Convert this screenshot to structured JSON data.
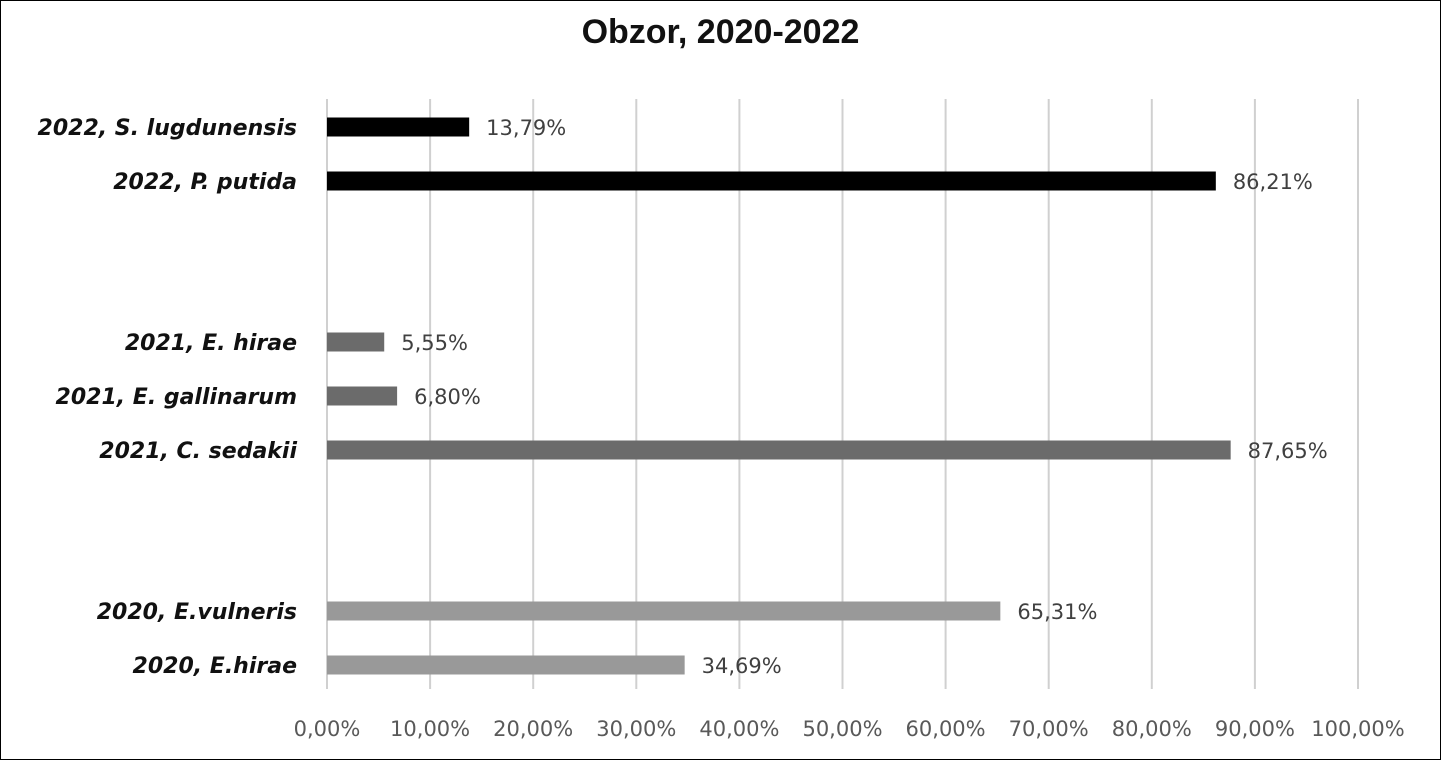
{
  "chart_data": {
    "type": "bar",
    "orientation": "horizontal",
    "title": "Obzor, 2020-2022",
    "xlabel": "",
    "ylabel": "",
    "xlim": [
      0,
      100
    ],
    "x_ticks": [
      0,
      10,
      20,
      30,
      40,
      50,
      60,
      70,
      80,
      90,
      100
    ],
    "x_tick_labels": [
      "0,00%",
      "10,00%",
      "20,00%",
      "30,00%",
      "40,00%",
      "50,00%",
      "60,00%",
      "70,00%",
      "80,00%",
      "90,00%",
      "100,00%"
    ],
    "grid": "vertical",
    "legend": "none",
    "groups": [
      {
        "year": "2022",
        "color": "#000000",
        "bars": [
          {
            "label": "2022, S. lugdunensis",
            "value": 13.79,
            "value_label": "13,79%"
          },
          {
            "label": "2022, P. putida",
            "value": 86.21,
            "value_label": "86,21%"
          }
        ]
      },
      {
        "year": "2021",
        "color": "#6b6b6b",
        "bars": [
          {
            "label": "2021, E. hirae",
            "value": 5.55,
            "value_label": "5,55%"
          },
          {
            "label": "2021, E. gallinarum",
            "value": 6.8,
            "value_label": "6,80%"
          },
          {
            "label": "2021, C. sedakii",
            "value": 87.65,
            "value_label": "87,65%"
          }
        ]
      },
      {
        "year": "2020",
        "color": "#999999",
        "bars": [
          {
            "label": "2020, E.vulneris",
            "value": 65.31,
            "value_label": "65,31%"
          },
          {
            "label": "2020, E.hirae",
            "value": 34.69,
            "value_label": "34,69%"
          }
        ]
      }
    ]
  }
}
